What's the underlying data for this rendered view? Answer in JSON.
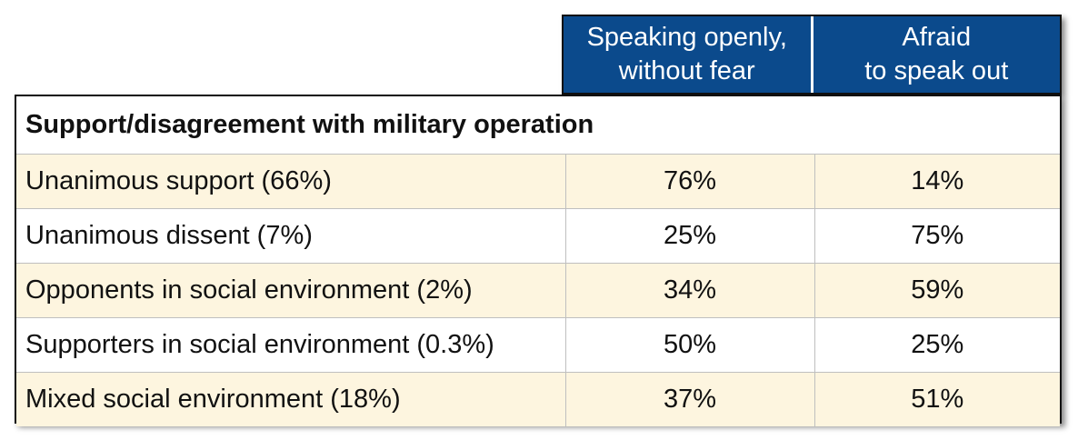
{
  "chart_data": {
    "type": "table",
    "columns": [
      "Speaking openly,\nwithout fear",
      "Afraid\nto speak out"
    ],
    "section_title": "Support/disagreement with military operation",
    "rows": [
      {
        "label": "Unanimous support (66%)",
        "values": [
          "76%",
          "14%"
        ]
      },
      {
        "label": "Unanimous dissent (7%)",
        "values": [
          "25%",
          "75%"
        ]
      },
      {
        "label": "Opponents in social environment (2%)",
        "values": [
          "34%",
          "59%"
        ]
      },
      {
        "label": "Supporters in social environment (0.3%)",
        "values": [
          "50%",
          "25%"
        ]
      },
      {
        "label": "Mixed social environment (18%)",
        "values": [
          "37%",
          "51%"
        ]
      }
    ]
  },
  "colors": {
    "header_bg": "#0b4a8c",
    "header_text": "#ffffff",
    "alt_row_bg": "#fdf5df",
    "border": "#111111"
  }
}
